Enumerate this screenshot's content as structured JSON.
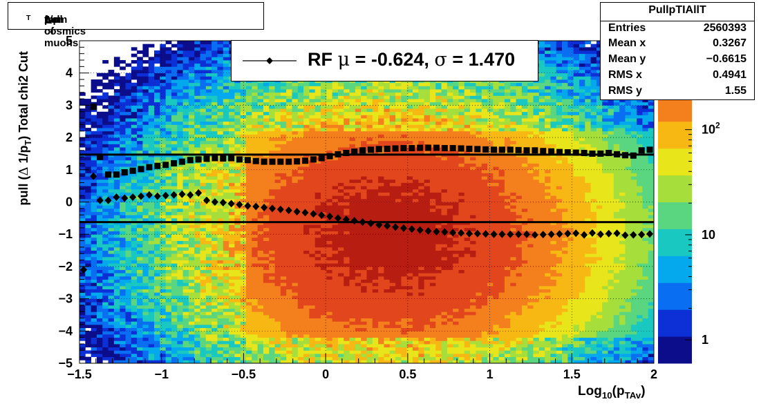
{
  "title": {
    "pre": "pull of ",
    "delta": "Δ",
    "mid": " 1/p",
    "sub": "T",
    "post": "  from cosmics muons"
  },
  "stats": {
    "name": "PullpTIAllT",
    "rows": [
      {
        "key": "Entries",
        "value": "2560393"
      },
      {
        "key": "Mean x",
        "value": "0.3267"
      },
      {
        "key": "Mean y",
        "value": "−0.6615"
      },
      {
        "key": "RMS x",
        "value": "0.4941"
      },
      {
        "key": "RMS y",
        "value": "1.55"
      }
    ]
  },
  "legend": {
    "pre": "RF ",
    "mu": "μ",
    "mean_text": " = -0.624, ",
    "sigma": "σ",
    "rms_text": " =   1.470"
  },
  "colors": {
    "marker": "#000000",
    "line": "#000000"
  },
  "chart_data": {
    "type": "heatmap",
    "xlabel": {
      "main": "Log",
      "sub1": "10",
      "open": "(p",
      "sub2": "TAv",
      "close": ")"
    },
    "ylabel": {
      "pre": "pull (",
      "delta": "Δ",
      "mid": " 1/p",
      "sub": "T",
      "post": ")  Total chi2 Cut"
    },
    "xlim": [
      -1.5,
      2.0
    ],
    "ylim": [
      -5,
      5
    ],
    "x_ticks": [
      {
        "v": -1.5,
        "label": "−1.5"
      },
      {
        "v": -1.0,
        "label": "−1"
      },
      {
        "v": -0.5,
        "label": "−0.5"
      },
      {
        "v": 0.0,
        "label": "0"
      },
      {
        "v": 0.5,
        "label": "0.5"
      },
      {
        "v": 1.0,
        "label": "1"
      },
      {
        "v": 1.5,
        "label": "1.5"
      },
      {
        "v": 2.0,
        "label": "2"
      }
    ],
    "y_ticks": [
      {
        "v": 5,
        "label": "5"
      },
      {
        "v": 4,
        "label": "4"
      },
      {
        "v": 3,
        "label": "3"
      },
      {
        "v": 2,
        "label": "2"
      },
      {
        "v": 1,
        "label": "1"
      },
      {
        "v": 0,
        "label": "0"
      },
      {
        "v": -1,
        "label": "−1"
      },
      {
        "v": -2,
        "label": "−2"
      },
      {
        "v": -3,
        "label": "−3"
      },
      {
        "v": -4,
        "label": "−4"
      },
      {
        "v": -5,
        "label": "−5"
      }
    ],
    "grid": true,
    "log_z": true,
    "z_range": [
      0.6,
      700
    ],
    "z_ticks": [
      {
        "v": 1,
        "label": "1"
      },
      {
        "v": 10,
        "label": "10"
      },
      {
        "v": 100,
        "label": "10",
        "sup": "2"
      }
    ],
    "density_peak": {
      "x": 0.4,
      "y": -1.0,
      "peak_counts": 600
    },
    "colorscale": [
      "#0b0d8a",
      "#0c2fd6",
      "#0a6ef2",
      "#03a9ec",
      "#19c8c0",
      "#5bd680",
      "#a6de3c",
      "#e8e51a",
      "#f7b814",
      "#f3801d",
      "#e1461c",
      "#b81d12"
    ],
    "hlines": [
      {
        "y": 1.47
      },
      {
        "y": -0.624
      }
    ],
    "series": [
      {
        "name": "mean",
        "marker": "diamond",
        "points": [
          [
            -1.475,
            -2.1
          ],
          [
            -1.415,
            0.8
          ],
          [
            -1.375,
            0.05
          ],
          [
            -1.325,
            0.05
          ],
          [
            -1.275,
            0.15
          ],
          [
            -1.225,
            0.12
          ],
          [
            -1.175,
            0.15
          ],
          [
            -1.125,
            0.18
          ],
          [
            -1.075,
            0.22
          ],
          [
            -1.025,
            0.18
          ],
          [
            -0.975,
            0.2
          ],
          [
            -0.925,
            0.22
          ],
          [
            -0.875,
            0.24
          ],
          [
            -0.825,
            0.22
          ],
          [
            -0.775,
            0.28
          ],
          [
            -0.725,
            0.05
          ],
          [
            -0.675,
            0.0
          ],
          [
            -0.625,
            -0.02
          ],
          [
            -0.575,
            -0.05
          ],
          [
            -0.525,
            -0.08
          ],
          [
            -0.475,
            -0.12
          ],
          [
            -0.425,
            -0.14
          ],
          [
            -0.375,
            -0.17
          ],
          [
            -0.325,
            -0.2
          ],
          [
            -0.275,
            -0.23
          ],
          [
            -0.225,
            -0.26
          ],
          [
            -0.175,
            -0.3
          ],
          [
            -0.125,
            -0.33
          ],
          [
            -0.075,
            -0.37
          ],
          [
            -0.025,
            -0.41
          ],
          [
            0.025,
            -0.45
          ],
          [
            0.075,
            -0.5
          ],
          [
            0.125,
            -0.54
          ],
          [
            0.175,
            -0.58
          ],
          [
            0.225,
            -0.62
          ],
          [
            0.275,
            -0.66
          ],
          [
            0.325,
            -0.71
          ],
          [
            0.375,
            -0.74
          ],
          [
            0.425,
            -0.78
          ],
          [
            0.475,
            -0.81
          ],
          [
            0.525,
            -0.84
          ],
          [
            0.575,
            -0.87
          ],
          [
            0.625,
            -0.9
          ],
          [
            0.675,
            -0.92
          ],
          [
            0.725,
            -0.93
          ],
          [
            0.775,
            -0.95
          ],
          [
            0.825,
            -0.96
          ],
          [
            0.875,
            -0.98
          ],
          [
            0.925,
            -0.98
          ],
          [
            0.975,
            -0.99
          ],
          [
            1.025,
            -1.0
          ],
          [
            1.075,
            -1.0
          ],
          [
            1.125,
            -1.0
          ],
          [
            1.175,
            -1.0
          ],
          [
            1.225,
            -1.0
          ],
          [
            1.275,
            -1.02
          ],
          [
            1.325,
            -1.01
          ],
          [
            1.375,
            -1.0
          ],
          [
            1.425,
            -0.99
          ],
          [
            1.475,
            -0.98
          ],
          [
            1.525,
            -0.97
          ],
          [
            1.575,
            -1.02
          ],
          [
            1.625,
            -0.96
          ],
          [
            1.675,
            -1.0
          ],
          [
            1.725,
            -0.98
          ],
          [
            1.775,
            -0.97
          ],
          [
            1.825,
            -1.03
          ],
          [
            1.875,
            -1.02
          ],
          [
            1.925,
            -1.01
          ],
          [
            1.975,
            -0.99
          ],
          [
            2.025,
            -0.97
          ],
          [
            2.075,
            -0.93
          ],
          [
            2.125,
            -0.94
          ],
          [
            2.175,
            -1.02
          ]
        ]
      },
      {
        "name": "rms",
        "marker": "square",
        "points": [
          [
            -1.415,
            2.95
          ],
          [
            -1.375,
            1.4
          ],
          [
            -1.325,
            0.85
          ],
          [
            -1.275,
            0.85
          ],
          [
            -1.225,
            0.92
          ],
          [
            -1.175,
            0.97
          ],
          [
            -1.125,
            1.02
          ],
          [
            -1.075,
            1.08
          ],
          [
            -1.025,
            1.12
          ],
          [
            -0.975,
            1.15
          ],
          [
            -0.925,
            1.2
          ],
          [
            -0.875,
            1.25
          ],
          [
            -0.825,
            1.3
          ],
          [
            -0.775,
            1.32
          ],
          [
            -0.725,
            1.34
          ],
          [
            -0.675,
            1.36
          ],
          [
            -0.625,
            1.35
          ],
          [
            -0.575,
            1.36
          ],
          [
            -0.525,
            1.32
          ],
          [
            -0.475,
            1.3
          ],
          [
            -0.425,
            1.27
          ],
          [
            -0.375,
            1.25
          ],
          [
            -0.325,
            1.25
          ],
          [
            -0.275,
            1.25
          ],
          [
            -0.225,
            1.25
          ],
          [
            -0.175,
            1.26
          ],
          [
            -0.125,
            1.28
          ],
          [
            -0.075,
            1.32
          ],
          [
            -0.025,
            1.36
          ],
          [
            0.025,
            1.42
          ],
          [
            0.075,
            1.48
          ],
          [
            0.125,
            1.52
          ],
          [
            0.175,
            1.56
          ],
          [
            0.225,
            1.6
          ],
          [
            0.275,
            1.62
          ],
          [
            0.325,
            1.64
          ],
          [
            0.375,
            1.65
          ],
          [
            0.425,
            1.66
          ],
          [
            0.475,
            1.67
          ],
          [
            0.525,
            1.67
          ],
          [
            0.575,
            1.68
          ],
          [
            0.625,
            1.68
          ],
          [
            0.675,
            1.68
          ],
          [
            0.725,
            1.67
          ],
          [
            0.775,
            1.67
          ],
          [
            0.825,
            1.66
          ],
          [
            0.875,
            1.65
          ],
          [
            0.925,
            1.64
          ],
          [
            0.975,
            1.63
          ],
          [
            1.025,
            1.62
          ],
          [
            1.075,
            1.62
          ],
          [
            1.125,
            1.62
          ],
          [
            1.175,
            1.61
          ],
          [
            1.225,
            1.6
          ],
          [
            1.275,
            1.6
          ],
          [
            1.325,
            1.58
          ],
          [
            1.375,
            1.57
          ],
          [
            1.425,
            1.55
          ],
          [
            1.475,
            1.54
          ],
          [
            1.525,
            1.53
          ],
          [
            1.575,
            1.52
          ],
          [
            1.625,
            1.5
          ],
          [
            1.675,
            1.5
          ],
          [
            1.725,
            1.52
          ],
          [
            1.775,
            1.48
          ],
          [
            1.825,
            1.45
          ],
          [
            1.875,
            1.44
          ],
          [
            1.925,
            1.6
          ],
          [
            1.975,
            1.62
          ],
          [
            2.025,
            1.65
          ],
          [
            2.075,
            1.78
          ],
          [
            2.125,
            1.9
          ],
          [
            2.175,
            2.1
          ]
        ]
      }
    ]
  }
}
